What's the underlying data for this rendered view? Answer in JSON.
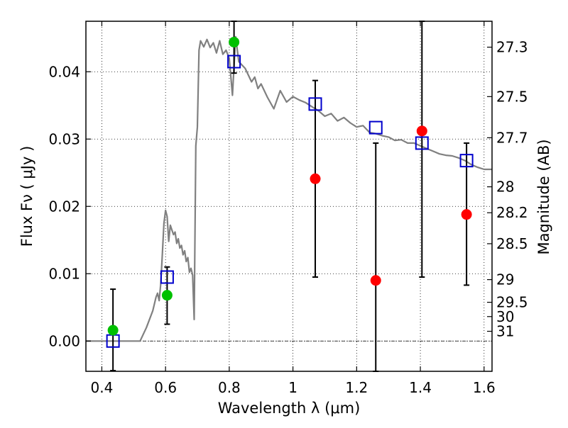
{
  "chart_data": {
    "type": "scatter",
    "xlabel": "Wavelength  λ (μm)",
    "ylabel": "Flux  Fν  ( μJy )",
    "y2label": "Magnitude (AB)",
    "xlim": [
      0.35,
      1.625
    ],
    "ylim": [
      -0.0045,
      0.0475
    ],
    "grid": true,
    "x_ticks": [
      0.4,
      0.6,
      0.8,
      1.0,
      1.2,
      1.4,
      1.6
    ],
    "x_tick_labels": [
      "0.4",
      "0.6",
      "0.8",
      "1",
      "1.2",
      "1.4",
      "1.6"
    ],
    "y_ticks": [
      0.0,
      0.01,
      0.02,
      0.03,
      0.04
    ],
    "y_tick_labels": [
      "0.00",
      "0.01",
      "0.02",
      "0.03",
      "0.04"
    ],
    "magnitude_ticks": [
      {
        "mag": 27.3,
        "label": "27.3"
      },
      {
        "mag": 27.5,
        "label": "27.5"
      },
      {
        "mag": 27.7,
        "label": "27.7"
      },
      {
        "mag": 28,
        "label": "28"
      },
      {
        "mag": 28.2,
        "label": "28.2"
      },
      {
        "mag": 28.5,
        "label": "28.5"
      },
      {
        "mag": 29,
        "label": "29"
      },
      {
        "mag": 29.5,
        "label": "29.5"
      },
      {
        "mag": 30,
        "label": "30"
      },
      {
        "mag": 31,
        "label": "31"
      }
    ],
    "series": [
      {
        "kind": "line",
        "color": "#808080",
        "x": [
          0.35,
          0.52,
          0.54,
          0.56,
          0.57,
          0.575,
          0.58,
          0.585,
          0.59,
          0.595,
          0.6,
          0.605,
          0.61,
          0.615,
          0.62,
          0.625,
          0.63,
          0.635,
          0.64,
          0.645,
          0.65,
          0.655,
          0.66,
          0.665,
          0.67,
          0.675,
          0.68,
          0.685,
          0.69,
          0.695,
          0.7,
          0.705,
          0.71,
          0.72,
          0.73,
          0.74,
          0.75,
          0.76,
          0.77,
          0.78,
          0.79,
          0.8,
          0.81,
          0.82,
          0.83,
          0.84,
          0.85,
          0.86,
          0.87,
          0.88,
          0.89,
          0.9,
          0.92,
          0.94,
          0.96,
          0.98,
          1.0,
          1.02,
          1.04,
          1.06,
          1.08,
          1.1,
          1.12,
          1.14,
          1.16,
          1.18,
          1.2,
          1.22,
          1.24,
          1.26,
          1.28,
          1.3,
          1.32,
          1.34,
          1.36,
          1.38,
          1.4,
          1.42,
          1.44,
          1.46,
          1.48,
          1.5,
          1.52,
          1.54,
          1.56,
          1.58,
          1.6,
          1.625
        ],
        "y": [
          0.0,
          0.0,
          0.002,
          0.0045,
          0.0065,
          0.0071,
          0.006,
          0.0085,
          0.013,
          0.0175,
          0.0194,
          0.0185,
          0.0148,
          0.0172,
          0.0165,
          0.0158,
          0.0162,
          0.0145,
          0.0152,
          0.0138,
          0.0142,
          0.0128,
          0.0134,
          0.0118,
          0.0124,
          0.0102,
          0.0108,
          0.0098,
          0.0032,
          0.029,
          0.0318,
          0.0432,
          0.0446,
          0.0437,
          0.0448,
          0.0436,
          0.0443,
          0.0428,
          0.0446,
          0.0426,
          0.0432,
          0.042,
          0.0365,
          0.0452,
          0.0415,
          0.041,
          0.0405,
          0.0395,
          0.0385,
          0.0392,
          0.0375,
          0.0382,
          0.0362,
          0.0345,
          0.0372,
          0.0355,
          0.0363,
          0.0358,
          0.0354,
          0.0348,
          0.0342,
          0.0334,
          0.0338,
          0.0327,
          0.0332,
          0.0324,
          0.0318,
          0.032,
          0.031,
          0.0308,
          0.0305,
          0.0303,
          0.0298,
          0.0299,
          0.0294,
          0.0294,
          0.029,
          0.0286,
          0.0282,
          0.0278,
          0.0276,
          0.0275,
          0.0272,
          0.0268,
          0.0262,
          0.0258,
          0.0255,
          0.0255
        ]
      },
      {
        "kind": "scatter",
        "marker": "square-open",
        "color": "#0000cc",
        "points": [
          {
            "x": 0.435,
            "y": 0.0
          },
          {
            "x": 0.605,
            "y": 0.0095
          },
          {
            "x": 0.815,
            "y": 0.0415
          },
          {
            "x": 1.07,
            "y": 0.0352
          },
          {
            "x": 1.26,
            "y": 0.0317
          },
          {
            "x": 1.405,
            "y": 0.0294
          },
          {
            "x": 1.545,
            "y": 0.0268
          }
        ]
      },
      {
        "kind": "scatter",
        "marker": "circle",
        "color": "#00c000",
        "points": [
          {
            "x": 0.435,
            "y": 0.0016
          },
          {
            "x": 0.605,
            "y": 0.0068
          },
          {
            "x": 0.815,
            "y": 0.0444
          }
        ]
      },
      {
        "kind": "scatter",
        "marker": "circle",
        "color": "#ff0000",
        "points": [
          {
            "x": 1.07,
            "y": 0.0241
          },
          {
            "x": 1.26,
            "y": 0.009
          },
          {
            "x": 1.405,
            "y": 0.0312
          },
          {
            "x": 1.545,
            "y": 0.0188
          }
        ]
      }
    ],
    "errorbars": [
      {
        "x": 0.435,
        "low": -0.0044,
        "high": 0.0077
      },
      {
        "x": 0.605,
        "low": 0.0025,
        "high": 0.011
      },
      {
        "x": 0.815,
        "low": 0.0398,
        "high": 0.0475
      },
      {
        "x": 1.07,
        "low": 0.0095,
        "high": 0.0387
      },
      {
        "x": 1.26,
        "low": -0.0045,
        "high": 0.0294
      },
      {
        "x": 1.405,
        "low": 0.0095,
        "high": 0.0475
      },
      {
        "x": 1.545,
        "low": 0.0083,
        "high": 0.0294
      }
    ]
  }
}
